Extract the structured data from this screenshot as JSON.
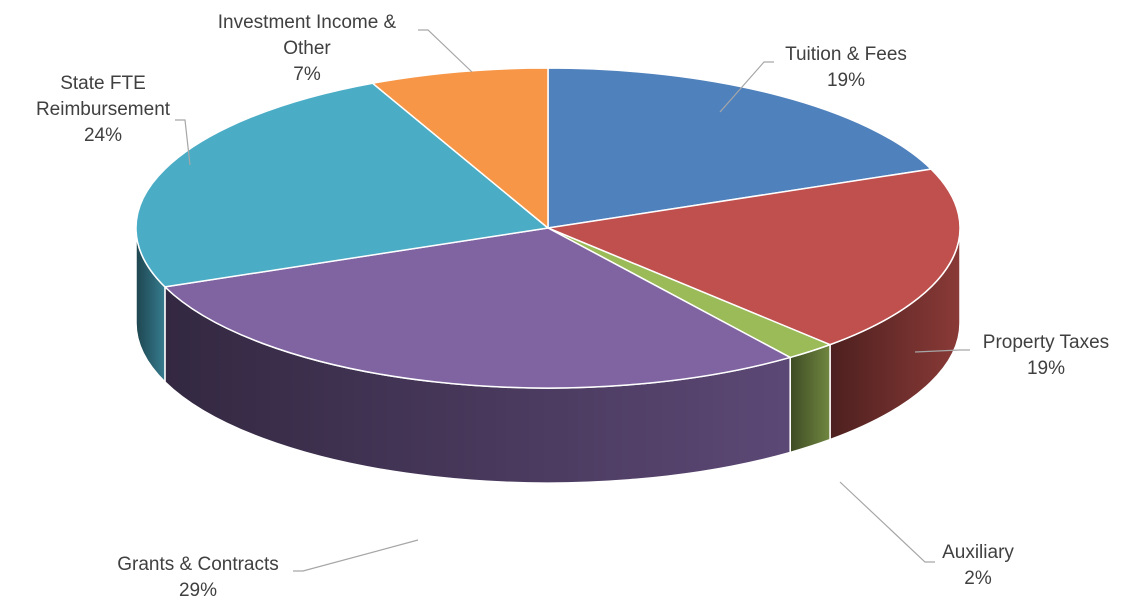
{
  "chart_data": {
    "type": "pie",
    "title": "",
    "style": "3d-exploded-depth",
    "start_angle_deg": 0,
    "direction": "clockwise",
    "slices": [
      {
        "label": "Tuition & Fees",
        "value": 19,
        "display": "19%",
        "color": "#4f81bd",
        "label_lines": [
          "Tuition & Fees"
        ]
      },
      {
        "label": "Property Taxes",
        "value": 19,
        "display": "19%",
        "color": "#c0504d",
        "label_lines": [
          "Property Taxes"
        ]
      },
      {
        "label": "Auxiliary",
        "value": 2,
        "display": "2%",
        "color": "#9bbb59",
        "label_lines": [
          "Auxiliary"
        ]
      },
      {
        "label": "Grants & Contracts",
        "value": 29,
        "display": "29%",
        "color": "#8064a2",
        "label_lines": [
          "Grants & Contracts"
        ]
      },
      {
        "label": "State FTE Reimbursement",
        "value": 24,
        "display": "24%",
        "color": "#4bacc6",
        "label_lines": [
          "State FTE",
          "Reimbursement"
        ]
      },
      {
        "label": "Investment Income & Other",
        "value": 7,
        "display": "7%",
        "color": "#f79646",
        "label_lines": [
          "Investment Income &",
          "Other"
        ]
      }
    ]
  }
}
